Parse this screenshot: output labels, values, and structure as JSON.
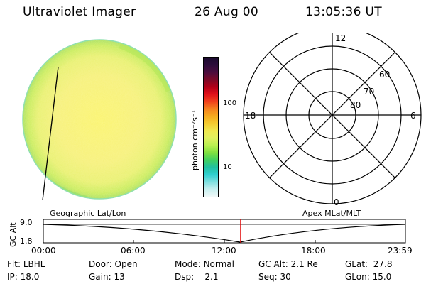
{
  "header": {
    "title": "Ultraviolet Imager",
    "date": "26 Aug 00",
    "time": "13:05:36 UT"
  },
  "colorbar": {
    "ticks": [
      "100",
      "10"
    ],
    "unit": "photon cm⁻²s⁻¹",
    "colors": [
      "#1a0a2e",
      "#2c0d3a",
      "#4a0d3e",
      "#7a0a28",
      "#b00018",
      "#e0101a",
      "#f0401c",
      "#f5801e",
      "#f5aa1e",
      "#f5cc30",
      "#f0e850",
      "#e0f060",
      "#b8f050",
      "#80e040",
      "#40d060",
      "#20c0a0",
      "#30d0d0",
      "#80e0e0",
      "#c8f0f0",
      "#f0f8f8"
    ]
  },
  "polar": {
    "mlt_labels": {
      "top": "12",
      "right": "6",
      "bottom": "0",
      "left": "18"
    },
    "lat_labels": [
      "60",
      "70",
      "80"
    ]
  },
  "map_labels": {
    "left": "Geographic Lat/Lon",
    "right": "Apex MLat/MLT"
  },
  "altitude_plot": {
    "ylabel": "GC Alt",
    "ymax": "9.0",
    "ymin": "1.8",
    "x_ticks": [
      "00:00",
      "06:00",
      "12:00",
      "18:00",
      "23:59"
    ],
    "marker_color": "#e00000"
  },
  "info": {
    "row1": [
      {
        "key": "Flt:",
        "value": "LBHL"
      },
      {
        "key": "Door:",
        "value": "Open"
      },
      {
        "key": "Mode:",
        "value": "Normal"
      },
      {
        "key": "GC Alt:",
        "value": "2.1 Re"
      },
      {
        "key": "GLat:",
        "value": "27.8"
      }
    ],
    "row2": [
      {
        "key": "IP:",
        "value": "18.0"
      },
      {
        "key": "Gain:",
        "value": "13"
      },
      {
        "key": "Dsp:",
        "value": "2.1"
      },
      {
        "key": "Seq:",
        "value": "30"
      },
      {
        "key": "GLon:",
        "value": "15.0"
      }
    ]
  }
}
